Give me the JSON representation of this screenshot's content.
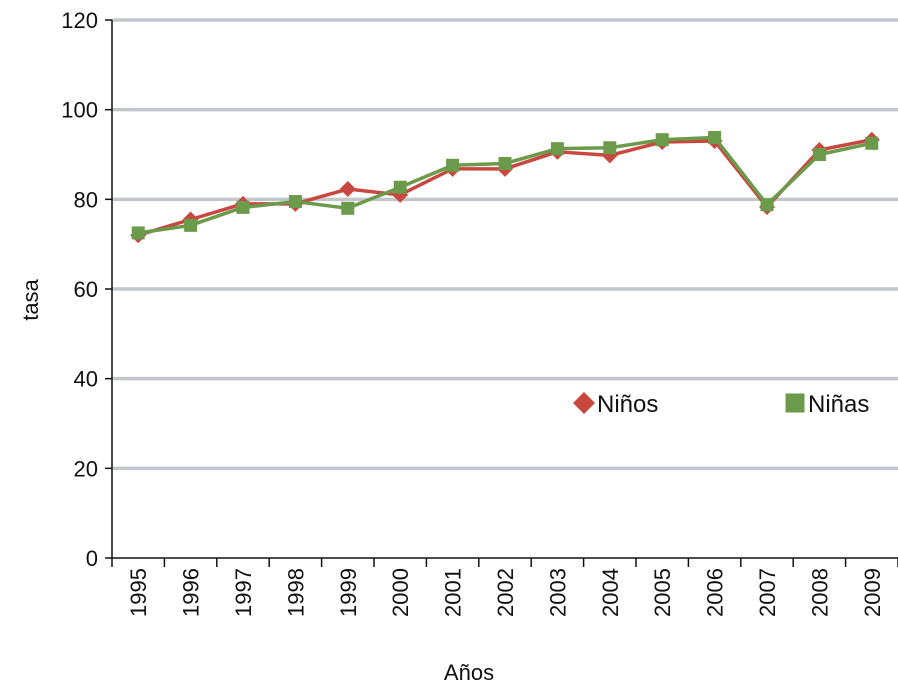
{
  "chart_data": {
    "type": "line",
    "xlabel": "Años",
    "ylabel": "tasa",
    "ylim": [
      0,
      120
    ],
    "yticks": [
      0,
      20,
      40,
      60,
      80,
      100,
      120
    ],
    "grid": true,
    "legend_position": "center-right",
    "categories": [
      "1995",
      "1996",
      "1997",
      "1998",
      "1999",
      "2000",
      "2001",
      "2002",
      "2003",
      "2004",
      "2005",
      "2006",
      "2007",
      "2008",
      "2009"
    ],
    "series": [
      {
        "name": "Niños",
        "marker": "diamond",
        "color": "#c8473f",
        "values": [
          72.0,
          75.5,
          79.0,
          79.0,
          82.3,
          81.0,
          86.8,
          86.8,
          90.6,
          89.8,
          92.8,
          93.0,
          78.3,
          91.0,
          93.3
        ]
      },
      {
        "name": "Niñas",
        "marker": "square",
        "color": "#6a9a4a",
        "values": [
          72.5,
          74.2,
          78.2,
          79.5,
          78.0,
          82.7,
          87.6,
          88.0,
          91.3,
          91.5,
          93.3,
          93.8,
          78.8,
          90.0,
          92.5
        ]
      }
    ]
  }
}
